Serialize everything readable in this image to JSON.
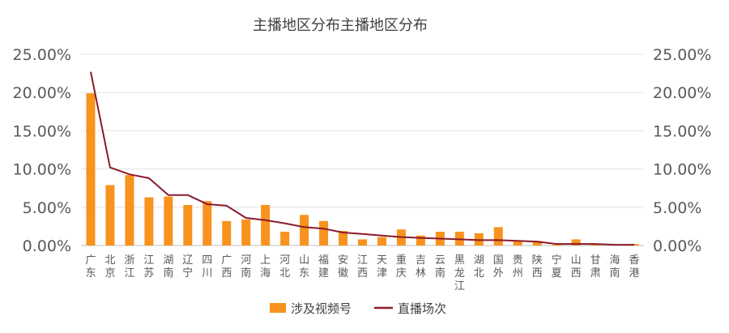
{
  "chart_data": {
    "type": "bar+line",
    "title": "主播地区分布主播地区分布",
    "categories": [
      "广东",
      "北京",
      "浙江",
      "江苏",
      "湖南",
      "辽宁",
      "四川",
      "广西",
      "河南",
      "上海",
      "河北",
      "山东",
      "福建",
      "安徽",
      "江西",
      "天津",
      "重庆",
      "吉林",
      "云南",
      "黑龙江",
      "湖北",
      "国外",
      "贵州",
      "陕西",
      "宁夏",
      "山西",
      "甘肃",
      "海南",
      "香港"
    ],
    "series": [
      {
        "name": "涉及视频号",
        "kind": "bar",
        "color": "#F7931E",
        "axis": "left",
        "values": [
          19.9,
          7.9,
          9.2,
          6.3,
          6.4,
          5.3,
          5.8,
          3.2,
          3.4,
          5.3,
          1.8,
          4.0,
          3.2,
          1.9,
          0.8,
          1.1,
          2.1,
          1.3,
          1.8,
          1.8,
          1.6,
          2.4,
          0.6,
          0.6,
          0.1,
          0.8,
          0.2,
          0.1,
          0.2
        ]
      },
      {
        "name": "直播场次",
        "kind": "line",
        "color": "#8B1A2B",
        "axis": "right",
        "values": [
          22.7,
          10.2,
          9.3,
          8.8,
          6.6,
          6.6,
          5.4,
          5.2,
          3.6,
          3.3,
          2.9,
          2.4,
          2.2,
          1.7,
          1.5,
          1.3,
          1.1,
          1.0,
          0.9,
          0.8,
          0.7,
          0.7,
          0.6,
          0.5,
          0.2,
          0.2,
          0.2,
          0.1,
          0.1
        ]
      }
    ],
    "y_left": {
      "min": 0,
      "max": 25,
      "ticks": [
        "0.00%",
        "5.00%",
        "10.00%",
        "15.00%",
        "20.00%",
        "25.00%"
      ]
    },
    "y_right": {
      "min": 0,
      "max": 25,
      "ticks": [
        "0.00%",
        "5.00%",
        "10.00%",
        "15.00%",
        "20.00%",
        "25.00%"
      ]
    },
    "grid": true,
    "legend_position": "bottom-center"
  }
}
